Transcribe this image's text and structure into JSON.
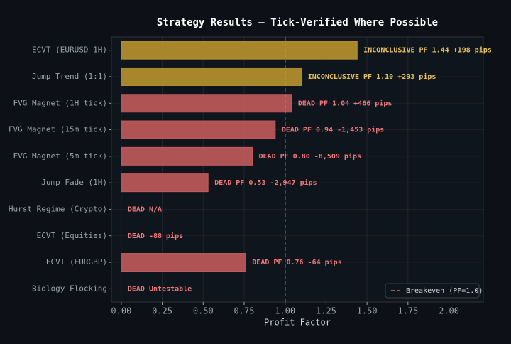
{
  "chart_data": {
    "type": "barh",
    "title": "Strategy Results — Tick-Verified Where Possible",
    "x_label": "Profit Factor",
    "categories": [
      "ECVT (EURUSD 1H)",
      "Jump Trend (1:1)",
      "FVG Magnet (1H tick)",
      "FVG Magnet (15m tick)",
      "FVG Magnet (5m tick)",
      "Jump Fade (1H)",
      "Hurst Regime (Crypto)",
      "ECVT (Equities)",
      "ECVT (EURGBP)",
      "Biology Flocking"
    ],
    "values": [
      1.44,
      1.1,
      1.04,
      0.94,
      0.8,
      0.53,
      0,
      0,
      0.76,
      0
    ],
    "bar_labels": [
      "INCONCLUSIVE  PF 1.44  +198 pips",
      "INCONCLUSIVE  PF 1.10  +293 pips",
      "DEAD  PF 1.04  +466 pips",
      "DEAD  PF 0.94  -1,453 pips",
      "DEAD  PF 0.80  -8,509 pips",
      "DEAD  PF 0.53  -2,947 pips",
      "DEAD  N/A",
      "DEAD  -88 pips",
      "DEAD  PF 0.76  -64 pips",
      "DEAD  Untestable"
    ],
    "colors": [
      "#b8922f",
      "#b8922f",
      "#c25a5c",
      "#c25a5c",
      "#c25a5c",
      "#c25a5c",
      "#c25a5c",
      "#c25a5c",
      "#c25a5c",
      "#c25a5c"
    ],
    "label_colors": [
      "#e8c05a",
      "#e8c05a",
      "#f07878",
      "#f07878",
      "#f07878",
      "#f07878",
      "#f07878",
      "#f07878",
      "#f07878",
      "#f07878"
    ],
    "xlim": [
      -0.06,
      2.21
    ],
    "xticks": [
      {
        "value": 0,
        "label": "0.00"
      },
      {
        "value": 0.25,
        "label": "0.25"
      },
      {
        "value": 0.5,
        "label": "0.50"
      },
      {
        "value": 0.75,
        "label": "0.75"
      },
      {
        "value": 1,
        "label": "1.00"
      },
      {
        "value": 1.25,
        "label": "1.25"
      },
      {
        "value": 1.5,
        "label": "1.50"
      },
      {
        "value": 1.75,
        "label": "1.75"
      },
      {
        "value": 2,
        "label": "2.00"
      }
    ],
    "grid": true,
    "reference_line": {
      "name": "Breakeven (PF=1.0)",
      "value": 1.0,
      "color": "#d9a441"
    },
    "legend": "lower right"
  }
}
